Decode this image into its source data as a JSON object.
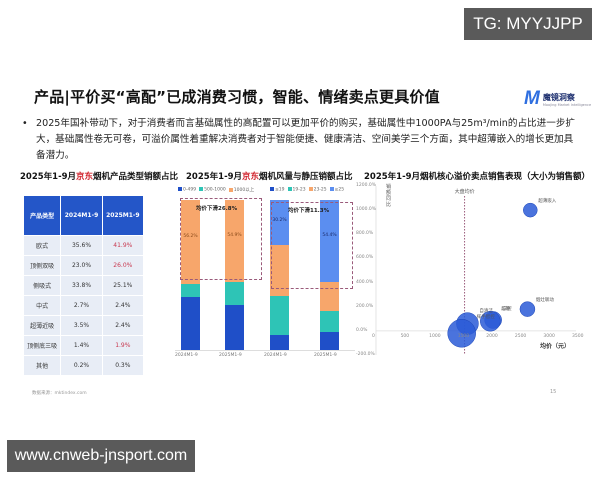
{
  "watermarks": {
    "top": "TG: MYYJJPP",
    "bottom": "www.cnweb-jnsport.com"
  },
  "header": {
    "title": "产品|平价买“高配”已成消费习惯，智能、情绪卖点更具价值",
    "logo_mark": "M",
    "logo_name": "魔镜洞察",
    "logo_sub": "Moojing Market Intelligence"
  },
  "bullet": {
    "symbol": "•",
    "text": "2025年国补带动下，对于消费者而言基础属性的高配置可以更加平价的购买，基础属性中1000PA与25m³/min的占比进一步扩大，基础属性卷无可卷，可溢价属性着重解决消费者对于智能便捷、健康清洁、空间美学三个方面，其中超薄嵌入的增长更加具备潜力。"
  },
  "footer": {
    "source": "数据来源：mktindex.com",
    "page": "15"
  },
  "chart_data": [
    {
      "type": "table",
      "title_prefix": "2025年1-9月",
      "title_brand": "京东",
      "title_suffix": "烟机产品类型销额占比",
      "columns": [
        "产品类型",
        "2024M1-9",
        "2025M1-9"
      ],
      "rows": [
        [
          "欧式",
          "35.6%",
          "41.9%"
        ],
        [
          "顶侧双吸",
          "23.0%",
          "26.0%"
        ],
        [
          "侧吸式",
          "33.8%",
          "25.1%"
        ],
        [
          "中式",
          "2.7%",
          "2.4%"
        ],
        [
          "超薄近吸",
          "3.5%",
          "2.4%"
        ],
        [
          "顶侧底三吸",
          "1.4%",
          "1.9%"
        ],
        [
          "其他",
          "0.2%",
          "0.3%"
        ]
      ],
      "highlighted_2025": [
        true,
        true,
        false,
        false,
        false,
        true,
        false
      ]
    },
    {
      "type": "bar",
      "stacked": true,
      "title_prefix": "2025年1-9月",
      "title_brand": "京东",
      "title_suffix": "烟机风量与静压销额占比",
      "categories": [
        "2024M1-9",
        "2025M1-9"
      ],
      "series": [
        {
          "name": "0-499",
          "color": "#1f4fc8",
          "values": [
            35.0,
            30.0
          ]
        },
        {
          "name": "500-1000",
          "color": "#2ec4b6",
          "values": [
            8.8,
            15.1
          ]
        },
        {
          "name": "1000以上",
          "color": "#f7a66b",
          "values": [
            56.2,
            54.9
          ]
        }
      ],
      "annotation": "均价下滑26.8%",
      "ylim": [
        0,
        100
      ]
    },
    {
      "type": "bar",
      "stacked": true,
      "title": "",
      "categories": [
        "2024M1-9",
        "2025M1-9"
      ],
      "series": [
        {
          "name": "≤19",
          "color": "#1f4fc8",
          "values": [
            10.0,
            12.0
          ]
        },
        {
          "name": "19-23",
          "color": "#2ec4b6",
          "values": [
            26.0,
            14.0
          ]
        },
        {
          "name": "23-25",
          "color": "#f7a66b",
          "values": [
            33.8,
            19.6
          ]
        },
        {
          "name": "≥25",
          "color": "#5b8ef0",
          "values": [
            30.2,
            54.4
          ]
        }
      ],
      "annotation": "均价下滑11.3%",
      "ylim": [
        0,
        100
      ]
    },
    {
      "type": "scatter",
      "bubble": true,
      "title": "2025年1-9月烟机核心溢价卖点销售表现（大小为销售额）",
      "xlabel": "均价（元）",
      "ylabel": "销额同比",
      "xticks": [
        "0",
        "500",
        "1000",
        "1500",
        "2000",
        "2500",
        "3000",
        "3500"
      ],
      "yticks": [
        "1200.0%",
        "1000.0%",
        "800.0%",
        "600.0%",
        "400.0%",
        "200.0%",
        "0.0%",
        "-200.0%"
      ],
      "xlim": [
        0,
        3500
      ],
      "ylim": [
        -200,
        1200
      ],
      "reference_line": {
        "label": "大盘均价",
        "x": 1550
      },
      "points": [
        {
          "label": "超薄嵌入",
          "x": 2700,
          "y": 1000,
          "size": 14
        },
        {
          "label": "烟灶联动",
          "x": 2650,
          "y": 180,
          "size": 15
        },
        {
          "label": "三腔",
          "x": 2050,
          "y": 90,
          "size": 17
        },
        {
          "label": "超静",
          "x": 2000,
          "y": 80,
          "size": 20
        },
        {
          "label": "自清洁",
          "x": 1600,
          "y": 60,
          "size": 22
        },
        {
          "label": "挥手智控",
          "x": 1500,
          "y": -20,
          "size": 28
        }
      ]
    }
  ]
}
